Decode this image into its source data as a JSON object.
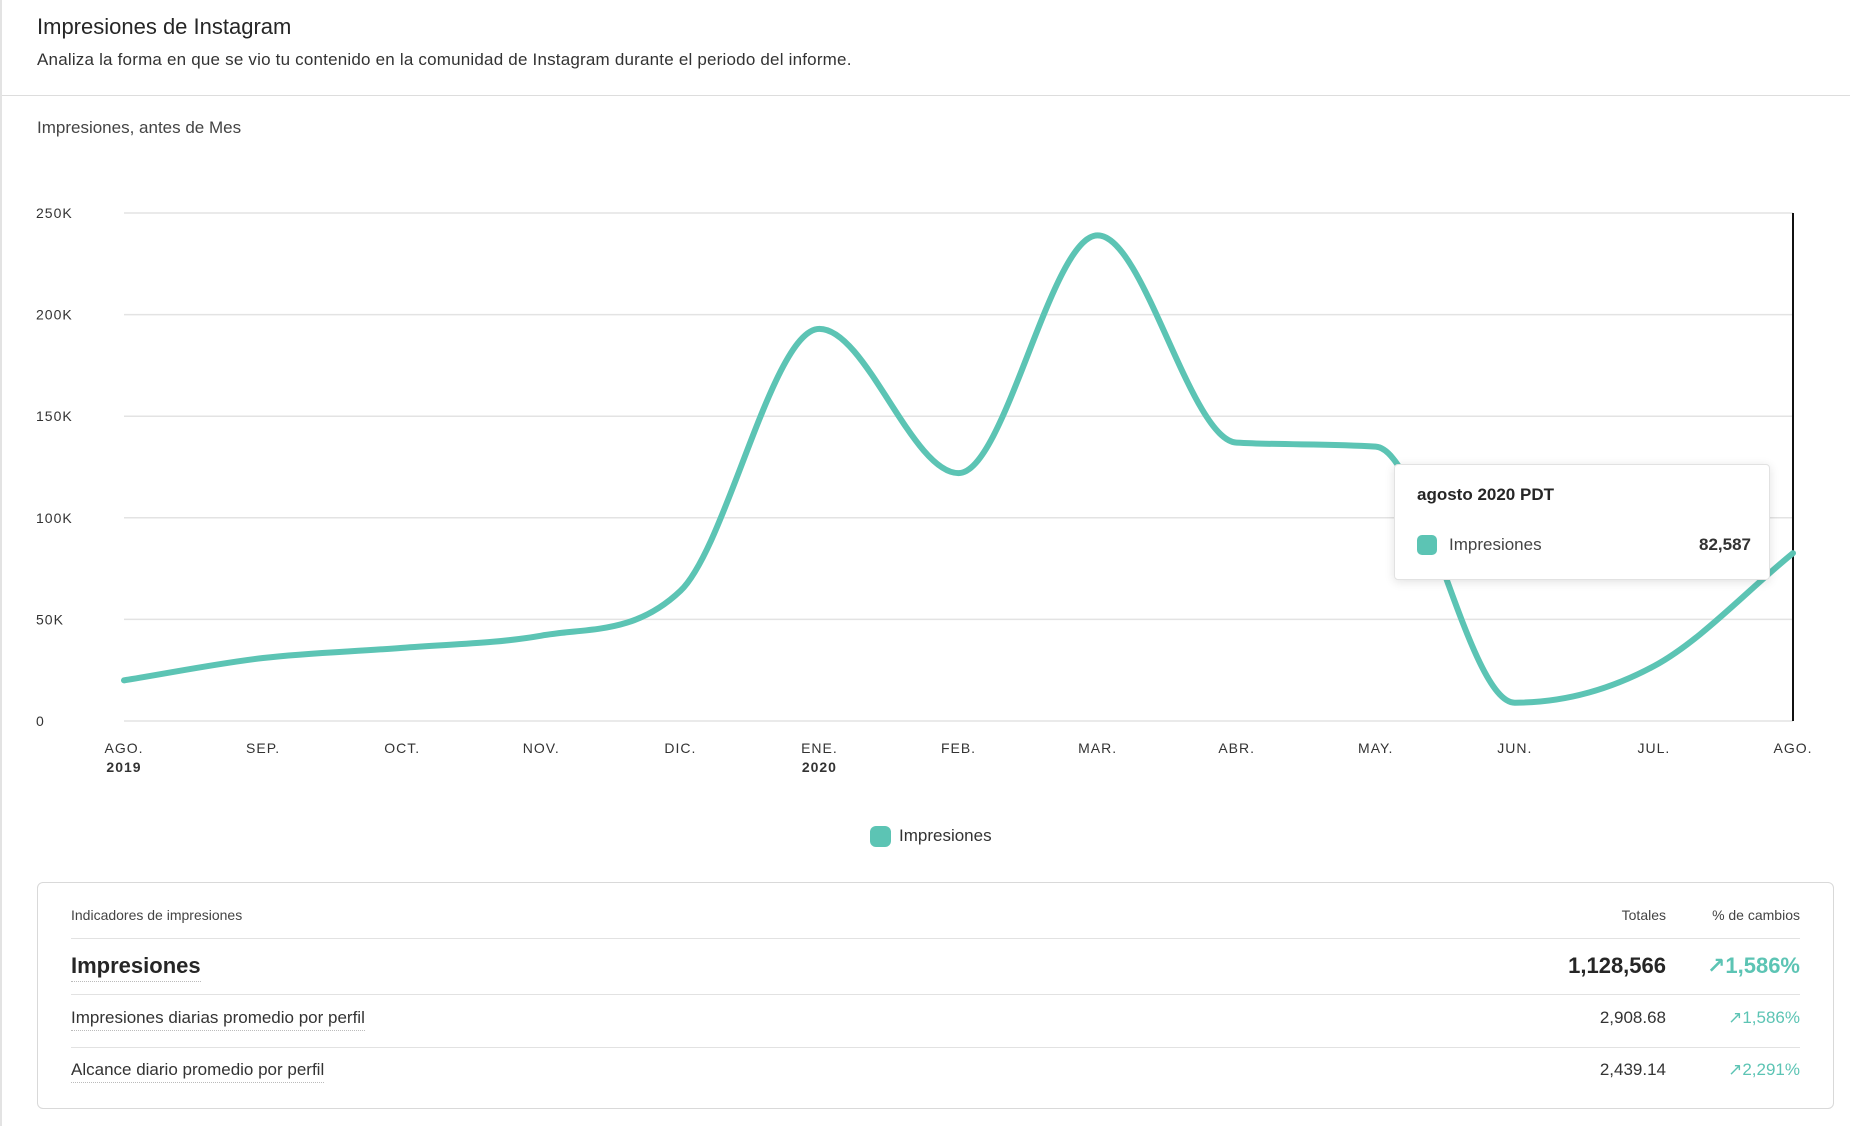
{
  "header": {
    "title": "Impresiones de Instagram",
    "subtitle": "Analiza la forma en que se vio tu contenido en la comunidad de Instagram durante el periodo del informe."
  },
  "chart_label": "Impresiones, antes de Mes",
  "colors": {
    "series": "#5cc4b4",
    "grid": "#e3e3e3"
  },
  "chart_data": {
    "type": "line",
    "categories": [
      "AGO.",
      "SEP.",
      "OCT.",
      "NOV.",
      "DIC.",
      "ENE.",
      "FEB.",
      "MAR.",
      "ABR.",
      "MAY.",
      "JUN.",
      "JUL.",
      "AGO."
    ],
    "category_years": [
      "2019",
      "",
      "",
      "",
      "",
      "2020",
      "",
      "",
      "",
      "",
      "",
      "",
      ""
    ],
    "series": [
      {
        "name": "Impresiones",
        "values": [
          20000,
          31000,
          36000,
          42000,
          64000,
          193000,
          122000,
          239000,
          137000,
          135000,
          9000,
          27000,
          82587
        ]
      }
    ],
    "yticks": [
      0,
      50000,
      100000,
      150000,
      200000,
      250000
    ],
    "ytick_labels": [
      "0",
      "50K",
      "100K",
      "150K",
      "200K",
      "250K"
    ],
    "ylim": [
      0,
      250000
    ],
    "grid": true,
    "legend": "bottom-center"
  },
  "tooltip": {
    "title": "agosto 2020 PDT",
    "series": "Impresiones",
    "value": "82,587"
  },
  "legend": {
    "label": "Impresiones"
  },
  "indicators": {
    "heading": "Indicadores de impresiones",
    "col_totals": "Totales",
    "col_change": "% de cambios",
    "rows": [
      {
        "label": "Impresiones",
        "total": "1,128,566",
        "change": "1,586%"
      },
      {
        "label": "Impresiones diarias promedio por perfil",
        "total": "2,908.68",
        "change": "1,586%"
      },
      {
        "label": "Alcance diario promedio por perfil",
        "total": "2,439.14",
        "change": "2,291%"
      }
    ]
  }
}
